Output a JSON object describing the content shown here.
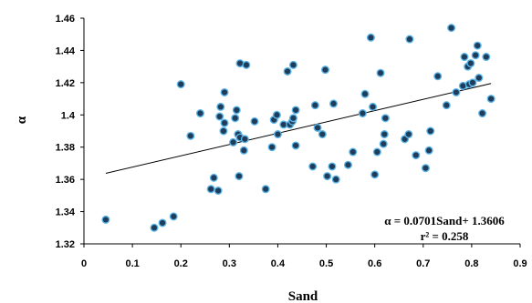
{
  "chart_data": {
    "type": "scatter",
    "xlabel": "Sand",
    "ylabel": "α",
    "xlim": [
      0,
      0.9
    ],
    "ylim": [
      1.32,
      1.46
    ],
    "xticks": [
      "0",
      "0.1",
      "0.2",
      "0.3",
      "0.4",
      "0.5",
      "0.6",
      "0.7",
      "0.8",
      "0.9"
    ],
    "yticks": [
      "1.32",
      "1.34",
      "1.36",
      "1.38",
      "1.4",
      "1.42",
      "1.44",
      "1.46"
    ],
    "grid": false,
    "marker_fill": "#1f3c5a",
    "marker_edge": "#5ab4e6",
    "trendline": {
      "slope": 0.0701,
      "intercept": 1.3606,
      "x_range": [
        0.045,
        0.84
      ]
    },
    "annotations": [
      "α = 0.0701Sand+ 1.3606",
      "r² = 0.258"
    ],
    "points": [
      [
        0.045,
        1.335
      ],
      [
        0.145,
        1.33
      ],
      [
        0.162,
        1.333
      ],
      [
        0.185,
        1.337
      ],
      [
        0.2,
        1.419
      ],
      [
        0.22,
        1.387
      ],
      [
        0.24,
        1.401
      ],
      [
        0.262,
        1.354
      ],
      [
        0.268,
        1.361
      ],
      [
        0.277,
        1.353
      ],
      [
        0.28,
        1.399
      ],
      [
        0.282,
        1.405
      ],
      [
        0.288,
        1.39
      ],
      [
        0.29,
        1.395
      ],
      [
        0.29,
        1.414
      ],
      [
        0.308,
        1.383
      ],
      [
        0.312,
        1.398
      ],
      [
        0.315,
        1.403
      ],
      [
        0.318,
        1.388
      ],
      [
        0.32,
        1.362
      ],
      [
        0.322,
        1.386
      ],
      [
        0.322,
        1.432
      ],
      [
        0.33,
        1.378
      ],
      [
        0.332,
        1.385
      ],
      [
        0.335,
        1.431
      ],
      [
        0.352,
        1.396
      ],
      [
        0.375,
        1.354
      ],
      [
        0.388,
        1.38
      ],
      [
        0.392,
        1.397
      ],
      [
        0.398,
        1.4
      ],
      [
        0.4,
        1.388
      ],
      [
        0.412,
        1.394
      ],
      [
        0.42,
        1.427
      ],
      [
        0.425,
        1.394
      ],
      [
        0.43,
        1.396
      ],
      [
        0.432,
        1.398
      ],
      [
        0.432,
        1.431
      ],
      [
        0.437,
        1.403
      ],
      [
        0.437,
        1.381
      ],
      [
        0.472,
        1.368
      ],
      [
        0.477,
        1.406
      ],
      [
        0.482,
        1.392
      ],
      [
        0.492,
        1.388
      ],
      [
        0.498,
        1.428
      ],
      [
        0.502,
        1.362
      ],
      [
        0.512,
        1.368
      ],
      [
        0.515,
        1.407
      ],
      [
        0.52,
        1.36
      ],
      [
        0.545,
        1.369
      ],
      [
        0.555,
        1.377
      ],
      [
        0.575,
        1.401
      ],
      [
        0.58,
        1.413
      ],
      [
        0.592,
        1.448
      ],
      [
        0.596,
        1.405
      ],
      [
        0.6,
        1.363
      ],
      [
        0.605,
        1.377
      ],
      [
        0.612,
        1.426
      ],
      [
        0.618,
        1.382
      ],
      [
        0.62,
        1.388
      ],
      [
        0.622,
        1.398
      ],
      [
        0.662,
        1.385
      ],
      [
        0.67,
        1.388
      ],
      [
        0.672,
        1.447
      ],
      [
        0.685,
        1.375
      ],
      [
        0.705,
        1.367
      ],
      [
        0.712,
        1.378
      ],
      [
        0.715,
        1.39
      ],
      [
        0.73,
        1.424
      ],
      [
        0.748,
        1.406
      ],
      [
        0.758,
        1.454
      ],
      [
        0.768,
        1.414
      ],
      [
        0.782,
        1.418
      ],
      [
        0.785,
        1.436
      ],
      [
        0.792,
        1.43
      ],
      [
        0.795,
        1.419
      ],
      [
        0.798,
        1.432
      ],
      [
        0.802,
        1.42
      ],
      [
        0.808,
        1.437
      ],
      [
        0.812,
        1.443
      ],
      [
        0.815,
        1.423
      ],
      [
        0.822,
        1.401
      ],
      [
        0.83,
        1.436
      ],
      [
        0.84,
        1.41
      ]
    ]
  }
}
